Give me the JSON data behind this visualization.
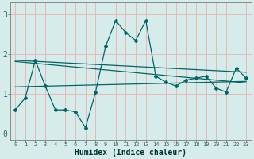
{
  "xlabel": "Humidex (Indice chaleur)",
  "background_color": "#d5ecea",
  "grid_color": "#e8b8b8",
  "line_color": "#006666",
  "spine_color": "#888888",
  "xlim": [
    -0.5,
    23.5
  ],
  "ylim": [
    -0.15,
    3.3
  ],
  "xticks": [
    0,
    1,
    2,
    3,
    4,
    5,
    6,
    7,
    8,
    9,
    10,
    11,
    12,
    13,
    14,
    15,
    16,
    17,
    18,
    19,
    20,
    21,
    22,
    23
  ],
  "yticks": [
    0,
    1,
    2,
    3
  ],
  "curve1_x": [
    0,
    1,
    2,
    3,
    4,
    5,
    6,
    7,
    8,
    9,
    10,
    11,
    12,
    13,
    14,
    15,
    16,
    17,
    18,
    19,
    20,
    21,
    22,
    23
  ],
  "curve1_y": [
    0.6,
    0.9,
    1.85,
    1.2,
    0.6,
    0.6,
    0.55,
    0.15,
    1.05,
    2.2,
    2.85,
    2.55,
    2.35,
    2.85,
    1.45,
    1.3,
    1.2,
    1.35,
    1.4,
    1.45,
    1.15,
    1.05,
    1.65,
    1.4
  ],
  "curve2_x": [
    0,
    23
  ],
  "curve2_y": [
    1.85,
    1.55
  ],
  "curve3_x": [
    0,
    23
  ],
  "curve3_y": [
    1.82,
    1.28
  ],
  "curve4_x": [
    0,
    23
  ],
  "curve4_y": [
    1.18,
    1.32
  ]
}
